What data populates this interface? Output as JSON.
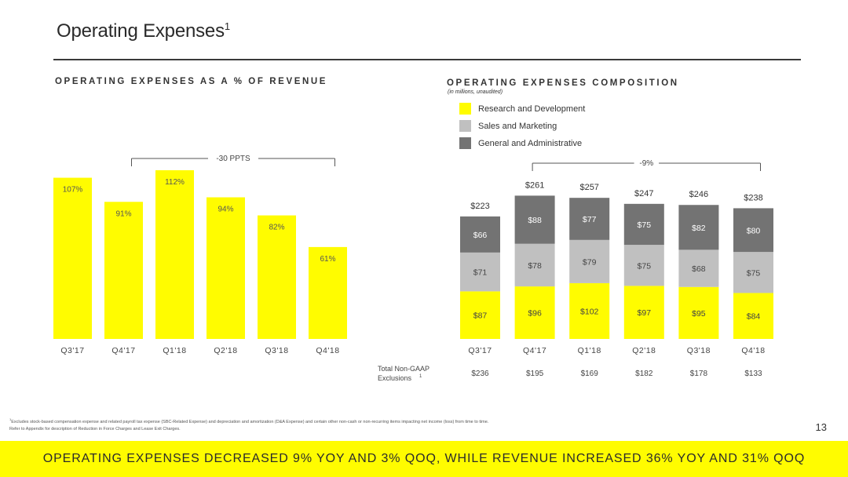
{
  "page": {
    "title": "Operating Expenses",
    "title_footnote_mark": "1",
    "page_number": "13",
    "footnote_mark": "1",
    "footnote_line1": "Excludes stock-based compensation expense and related payroll tax expense (SBC-Related Expense) and depreciation and amortization (D&A Expense) and certain other non-cash or non-recurring items impacting net income (loss) from time to time.",
    "footnote_line2": "Refer to Appendix for description of Reduction in Force Charges and Lease Exit Charges.",
    "banner_text": "OPERATING EXPENSES DECREASED 9% YOY AND 3% QoQ, WHILE REVENUE INCREASED 36% YoY AND 31% QoQ",
    "accent_color": "#fffc00"
  },
  "chart_data": [
    {
      "type": "bar",
      "title": "OPERATING EXPENSES AS A % OF REVENUE",
      "categories": [
        "Q3'17",
        "Q4'17",
        "Q1'18",
        "Q2'18",
        "Q3'18",
        "Q4'18"
      ],
      "values": [
        107,
        91,
        112,
        94,
        82,
        61
      ],
      "value_labels": [
        "107%",
        "91%",
        "112%",
        "94%",
        "82%",
        "61%"
      ],
      "unit": "%",
      "ylim": [
        0,
        130
      ],
      "color": "#fffc00",
      "annotation": {
        "text": "-30 PPTS",
        "from": "Q4'17",
        "to": "Q4'18"
      },
      "grid": false
    },
    {
      "type": "bar",
      "stacked": true,
      "title": "OPERATING EXPENSES COMPOSITION",
      "subtitle": "(in millions, unaudited)",
      "categories": [
        "Q3'17",
        "Q4'17",
        "Q1'18",
        "Q2'18",
        "Q3'18",
        "Q4'18"
      ],
      "series": [
        {
          "name": "Research and Development",
          "color": "#fffc00",
          "values": [
            87,
            96,
            102,
            97,
            95,
            84
          ],
          "labels": [
            "$87",
            "$96",
            "$102",
            "$97",
            "$95",
            "$84"
          ]
        },
        {
          "name": "Sales and Marketing",
          "color": "#c0c0c0",
          "values": [
            71,
            78,
            79,
            75,
            68,
            75
          ],
          "labels": [
            "$71",
            "$78",
            "$79",
            "$75",
            "$68",
            "$75"
          ]
        },
        {
          "name": "General and Administrative",
          "color": "#737373",
          "values": [
            66,
            88,
            77,
            75,
            82,
            80
          ],
          "labels": [
            "$66",
            "$88",
            "$77",
            "$75",
            "$82",
            "$80"
          ]
        }
      ],
      "totals": [
        223,
        261,
        257,
        247,
        246,
        238
      ],
      "total_labels": [
        "$223",
        "$261",
        "$257",
        "$247",
        "$246",
        "$238"
      ],
      "ylim": [
        0,
        300
      ],
      "annotation": {
        "text": "-9%",
        "from": "Q4'17",
        "to": "Q4'18"
      },
      "exclusions_label_line1": "Total Non-GAAP",
      "exclusions_label_line2": "Exclusions",
      "exclusions_mark": "1",
      "exclusions": [
        "$236",
        "$195",
        "$169",
        "$182",
        "$178",
        "$133"
      ],
      "grid": false
    }
  ]
}
